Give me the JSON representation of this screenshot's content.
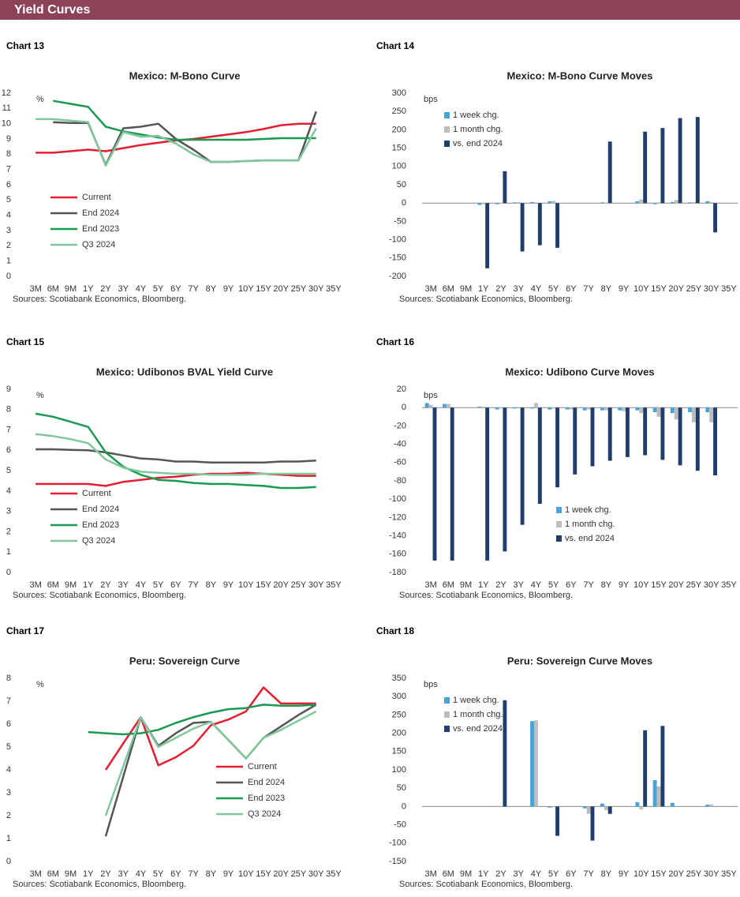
{
  "header": {
    "title": "Yield Curves"
  },
  "chart_data": [
    {
      "label": "Chart 13",
      "title": "Mexico: M-Bono Curve",
      "source": "Sources: Scotiabank Economics, Bloomberg.",
      "type": "line",
      "ylabel": "%",
      "categories": [
        "3M",
        "6M",
        "9M",
        "1Y",
        "2Y",
        "3Y",
        "4Y",
        "5Y",
        "6Y",
        "7Y",
        "8Y",
        "9Y",
        "10Y",
        "15Y",
        "20Y",
        "25Y",
        "30Y",
        "35Y"
      ],
      "ylim": [
        0,
        12
      ],
      "yticks": [
        0,
        1,
        2,
        3,
        4,
        5,
        6,
        7,
        8,
        9,
        10,
        11,
        12
      ],
      "legend": "lower left",
      "series": [
        {
          "name": "Current",
          "color": "#e31e30",
          "values": [
            8.1,
            8.1,
            8.2,
            8.3,
            8.2,
            8.4,
            8.6,
            8.75,
            8.9,
            9.0,
            9.15,
            9.3,
            9.45,
            9.65,
            9.9,
            10.0,
            10.0,
            null
          ]
        },
        {
          "name": "End 2024",
          "color": "#555555",
          "values": [
            null,
            10.1,
            10.05,
            10.05,
            7.3,
            9.7,
            9.8,
            10.0,
            9.0,
            8.3,
            7.5,
            7.5,
            7.55,
            7.6,
            7.6,
            7.6,
            10.8,
            null
          ]
        },
        {
          "name": "End 2023",
          "color": "#1a9a50",
          "values": [
            null,
            11.5,
            11.3,
            11.1,
            9.8,
            9.5,
            9.3,
            9.1,
            8.95,
            8.95,
            8.95,
            8.95,
            8.95,
            9.0,
            9.05,
            9.05,
            9.05,
            null
          ]
        },
        {
          "name": "Q3 2024",
          "color": "#80c79b",
          "values": [
            10.3,
            10.3,
            10.2,
            10.1,
            7.25,
            9.45,
            9.15,
            9.2,
            8.7,
            8.0,
            7.5,
            7.5,
            7.55,
            7.6,
            7.6,
            7.6,
            9.7,
            null
          ]
        }
      ]
    },
    {
      "label": "Chart 14",
      "title": "Mexico: M-Bono Curve Moves",
      "source": "Sources: Scotiabank Economics, Bloomberg.",
      "type": "bar",
      "ylabel": "bps",
      "categories": [
        "3M",
        "6M",
        "9M",
        "1Y",
        "2Y",
        "3Y",
        "4Y",
        "5Y",
        "6Y",
        "7Y",
        "8Y",
        "9Y",
        "10Y",
        "15Y",
        "20Y",
        "25Y",
        "30Y",
        "35Y"
      ],
      "ylim": [
        -200,
        300
      ],
      "yticks": [
        -200,
        -150,
        -100,
        -50,
        0,
        50,
        100,
        150,
        200,
        250,
        300
      ],
      "legend": "upper left",
      "series": [
        {
          "name": "1 week chg.",
          "color": "#4aa3d8",
          "values": [
            null,
            null,
            null,
            -5,
            -3,
            2,
            3,
            5,
            null,
            null,
            2,
            null,
            5,
            -3,
            3,
            2,
            5,
            null
          ]
        },
        {
          "name": "1 month chg.",
          "color": "#bdbdbd",
          "values": [
            null,
            null,
            null,
            -3,
            -2,
            3,
            2,
            6,
            null,
            null,
            1,
            null,
            10,
            2,
            8,
            3,
            3,
            null
          ]
        },
        {
          "name": "vs. end 2024",
          "color": "#1f3e6e",
          "values": [
            null,
            null,
            null,
            -178,
            87,
            -132,
            -115,
            -122,
            null,
            null,
            168,
            null,
            195,
            205,
            232,
            235,
            -80,
            null
          ]
        }
      ]
    },
    {
      "label": "Chart 15",
      "title": "Mexico: Udibonos BVAL Yield Curve",
      "source": "Sources: Scotiabank Economics, Bloomberg.",
      "type": "line",
      "ylabel": "%",
      "categories": [
        "3M",
        "6M",
        "9M",
        "1Y",
        "2Y",
        "3Y",
        "4Y",
        "5Y",
        "6Y",
        "7Y",
        "8Y",
        "9Y",
        "10Y",
        "15Y",
        "20Y",
        "25Y",
        "30Y",
        "35Y"
      ],
      "ylim": [
        0,
        9
      ],
      "yticks": [
        0,
        1,
        2,
        3,
        4,
        5,
        6,
        7,
        8,
        9
      ],
      "legend": "lower left",
      "series": [
        {
          "name": "Current",
          "color": "#e31e30",
          "values": [
            4.35,
            4.35,
            4.35,
            4.35,
            4.25,
            4.45,
            4.55,
            4.65,
            4.7,
            4.8,
            4.85,
            4.85,
            4.9,
            4.85,
            4.8,
            4.75,
            4.75,
            null
          ]
        },
        {
          "name": "End 2024",
          "color": "#555555",
          "values": [
            6.05,
            6.05,
            6.02,
            6.0,
            5.9,
            5.75,
            5.6,
            5.55,
            5.45,
            5.45,
            5.4,
            5.4,
            5.4,
            5.4,
            5.45,
            5.45,
            5.5,
            null
          ]
        },
        {
          "name": "End 2023",
          "color": "#1a9a50",
          "values": [
            7.8,
            7.65,
            7.4,
            7.15,
            5.9,
            5.2,
            4.8,
            4.55,
            4.5,
            4.4,
            4.35,
            4.35,
            4.3,
            4.25,
            4.15,
            4.15,
            4.2,
            null
          ]
        },
        {
          "name": "Q3 2024",
          "color": "#80c79b",
          "values": [
            6.8,
            6.7,
            6.55,
            6.35,
            5.55,
            5.15,
            4.95,
            4.9,
            4.85,
            4.85,
            4.8,
            4.8,
            4.8,
            4.85,
            4.85,
            4.85,
            4.85,
            null
          ]
        }
      ]
    },
    {
      "label": "Chart 16",
      "title": "Mexico: Udibono Curve Moves",
      "source": "Sources: Scotiabank Economics, Bloomberg.",
      "type": "bar",
      "ylabel": "bps",
      "categories": [
        "3M",
        "6M",
        "9M",
        "1Y",
        "2Y",
        "3Y",
        "4Y",
        "5Y",
        "6Y",
        "7Y",
        "8Y",
        "9Y",
        "10Y",
        "15Y",
        "20Y",
        "25Y",
        "30Y",
        "35Y"
      ],
      "ylim": [
        -180,
        20
      ],
      "yticks": [
        -180,
        -160,
        -140,
        -120,
        -100,
        -80,
        -60,
        -40,
        -20,
        0,
        20
      ],
      "legend": "lower center",
      "series": [
        {
          "name": "1 week chg.",
          "color": "#4aa3d8",
          "values": [
            5,
            4,
            null,
            1,
            -2,
            -1,
            -1,
            -2,
            -2,
            -3,
            -3,
            -3,
            -3,
            -5,
            -6,
            -5,
            -5,
            null
          ]
        },
        {
          "name": "1 month chg.",
          "color": "#bdbdbd",
          "values": [
            3,
            4,
            null,
            1,
            -1,
            0,
            5,
            -1,
            -2,
            -2,
            -3,
            -4,
            -6,
            -10,
            -13,
            -16,
            -16,
            null
          ]
        },
        {
          "name": "vs. end 2024",
          "color": "#1f3e6e",
          "values": [
            -167,
            -167,
            null,
            -167,
            -157,
            -128,
            -105,
            -87,
            -73,
            -64,
            -58,
            -54,
            -52,
            -57,
            -63,
            -69,
            -74,
            null
          ]
        }
      ]
    },
    {
      "label": "Chart 17",
      "title": "Peru: Sovereign Curve",
      "source": "Sources: Scotiabank Economics, Bloomberg.",
      "type": "line",
      "ylabel": "%",
      "categories": [
        "3M",
        "6M",
        "9M",
        "1Y",
        "2Y",
        "3Y",
        "4Y",
        "5Y",
        "6Y",
        "7Y",
        "8Y",
        "9Y",
        "10Y",
        "15Y",
        "20Y",
        "25Y",
        "30Y",
        "35Y"
      ],
      "ylim": [
        0,
        8
      ],
      "yticks": [
        0,
        1,
        2,
        3,
        4,
        5,
        6,
        7,
        8
      ],
      "legend": "lower right",
      "series": [
        {
          "name": "Current",
          "color": "#e31e30",
          "values": [
            null,
            null,
            null,
            null,
            4.0,
            5.15,
            6.3,
            4.2,
            4.55,
            5.05,
            5.95,
            6.2,
            6.55,
            7.6,
            6.9,
            6.9,
            6.9,
            null
          ]
        },
        {
          "name": "End 2024",
          "color": "#555555",
          "values": [
            null,
            null,
            null,
            null,
            1.1,
            3.7,
            6.3,
            5.05,
            5.6,
            6.05,
            6.1,
            5.3,
            4.5,
            5.4,
            5.9,
            6.4,
            6.85,
            null
          ]
        },
        {
          "name": "End 2023",
          "color": "#1a9a50",
          "values": [
            null,
            null,
            null,
            5.65,
            5.6,
            5.55,
            5.6,
            5.75,
            6.05,
            6.3,
            6.5,
            6.65,
            6.7,
            6.85,
            6.8,
            6.8,
            6.85,
            null
          ]
        },
        {
          "name": "Q3 2024",
          "color": "#80c79b",
          "values": [
            null,
            null,
            null,
            null,
            2.0,
            4.15,
            6.3,
            5.0,
            5.4,
            5.8,
            6.1,
            5.3,
            4.5,
            5.4,
            5.75,
            6.15,
            6.55,
            null
          ]
        }
      ]
    },
    {
      "label": "Chart 18",
      "title": "Peru: Sovereign Curve Moves",
      "source": "Sources: Scotiabank Economics, Bloomberg.",
      "type": "bar",
      "ylabel": "bps",
      "categories": [
        "3M",
        "6M",
        "9M",
        "1Y",
        "2Y",
        "3Y",
        "4Y",
        "5Y",
        "6Y",
        "7Y",
        "8Y",
        "9Y",
        "10Y",
        "15Y",
        "20Y",
        "25Y",
        "30Y",
        "35Y"
      ],
      "ylim": [
        -150,
        350
      ],
      "yticks": [
        -150,
        -100,
        -50,
        0,
        50,
        100,
        150,
        200,
        250,
        300,
        350
      ],
      "legend": "upper left",
      "series": [
        {
          "name": "1 week chg.",
          "color": "#4aa3d8",
          "values": [
            null,
            null,
            null,
            null,
            null,
            null,
            233,
            -3,
            null,
            -5,
            8,
            null,
            12,
            72,
            10,
            null,
            5,
            null
          ]
        },
        {
          "name": "1 month chg.",
          "color": "#bdbdbd",
          "values": [
            null,
            null,
            null,
            null,
            null,
            null,
            235,
            -2,
            null,
            -20,
            -10,
            null,
            -8,
            55,
            null,
            null,
            6,
            null
          ]
        },
        {
          "name": "vs. end 2024",
          "color": "#1f3e6e",
          "values": [
            null,
            null,
            null,
            null,
            290,
            null,
            null,
            -80,
            null,
            -93,
            -20,
            null,
            208,
            220,
            null,
            null,
            null,
            null
          ]
        }
      ]
    }
  ]
}
